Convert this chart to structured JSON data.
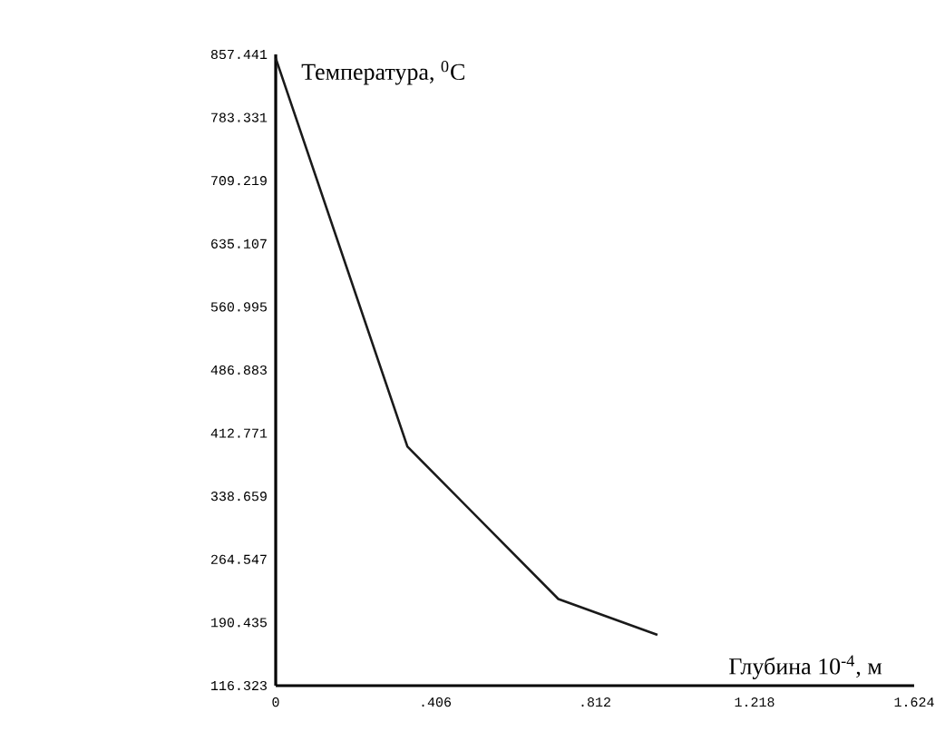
{
  "chart_data": {
    "type": "line",
    "xlabel": "Глубина 10$^{-4}$, м",
    "ylabel": "Температура, $^{0}$C",
    "x": [
      0,
      0.335,
      0.719,
      0.971
    ],
    "values": [
      853,
      397,
      218,
      176
    ],
    "color": "#1a1a1a",
    "xlim": [
      0,
      1.624
    ],
    "xticks": [
      {
        "value": 0,
        "label": "0"
      },
      {
        "value": 0.406,
        "label": ".406"
      },
      {
        "value": 0.812,
        "label": ".812"
      },
      {
        "value": 1.218,
        "label": "1.218"
      },
      {
        "value": 1.624,
        "label": "1.624"
      }
    ],
    "ylim": [
      116.323,
      857.441
    ],
    "yticks": [
      116.323,
      190.435,
      264.547,
      338.659,
      412.771,
      486.883,
      560.995,
      635.107,
      709.219,
      783.331,
      857.441
    ],
    "grid": false,
    "marker": "none",
    "line_style": "solid"
  }
}
